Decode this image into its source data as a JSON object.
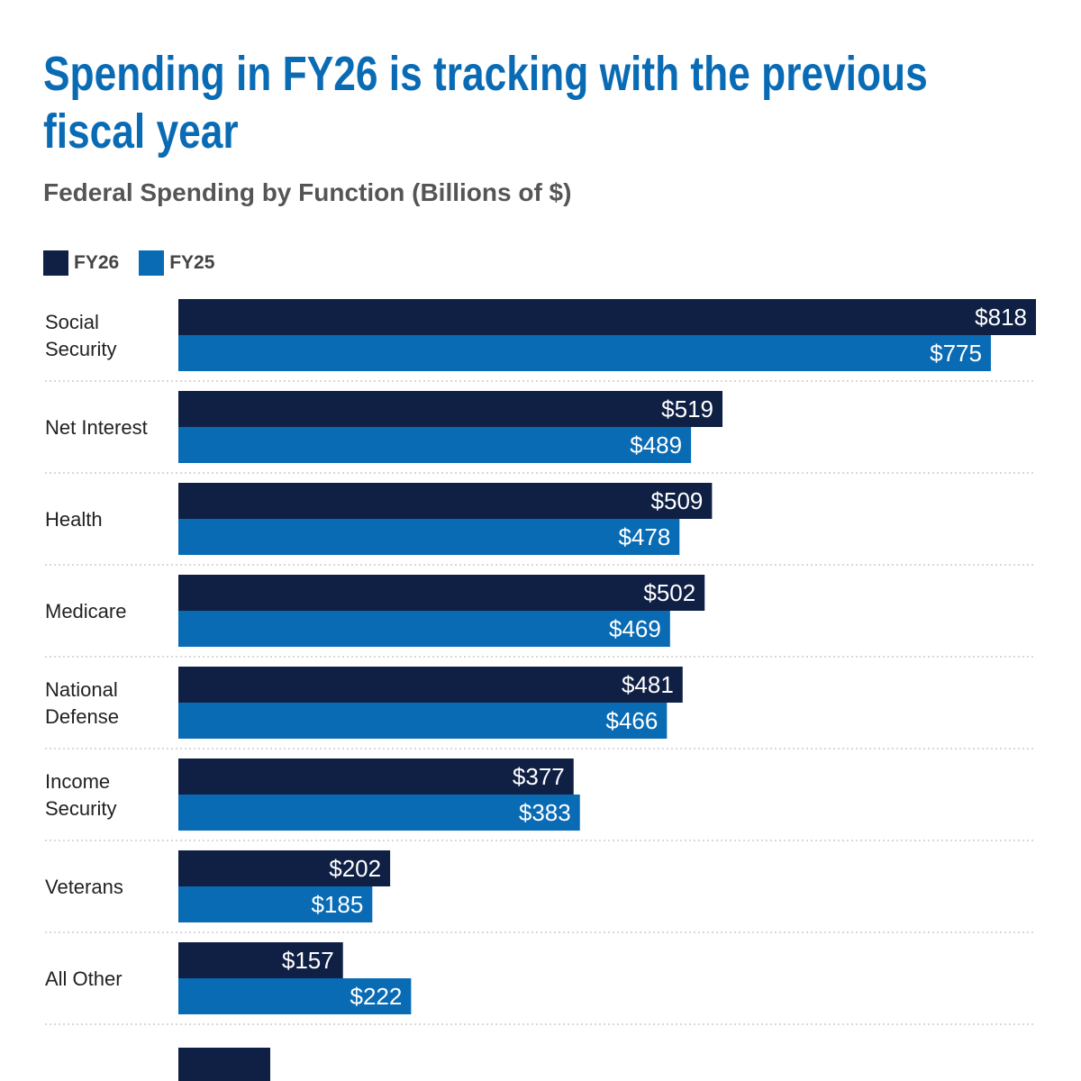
{
  "chart_data": {
    "type": "bar",
    "orientation": "horizontal",
    "title": "Spending in FY26 is tracking with the previous fiscal year",
    "subtitle": "Federal Spending by Function (Billions of $)",
    "categories": [
      [
        "Social",
        "Security"
      ],
      [
        "Net Interest"
      ],
      [
        "Health"
      ],
      [
        "Medicare"
      ],
      [
        "National",
        "Defense"
      ],
      [
        "Income",
        "Security"
      ],
      [
        "Veterans"
      ],
      [
        "All Other"
      ]
    ],
    "series": [
      {
        "name": "FY26",
        "color": "#0f2044",
        "values": [
          818,
          519,
          509,
          502,
          481,
          377,
          202,
          157
        ],
        "labels": [
          "$818",
          "$519",
          "$509",
          "$502",
          "$481",
          "$377",
          "$202",
          "$157"
        ]
      },
      {
        "name": "FY25",
        "color": "#0a6bb5",
        "values": [
          775,
          489,
          478,
          469,
          466,
          383,
          185,
          222
        ],
        "labels": [
          "$775",
          "$489",
          "$478",
          "$469",
          "$466",
          "$383",
          "$185",
          "$222"
        ]
      }
    ],
    "xlim": [
      0,
      818
    ],
    "legend": "top-left",
    "grid": false
  },
  "colors": {
    "title": "#0a6bb5",
    "fy26": "#0f2044",
    "fy25": "#0a6bb5",
    "divider": "#cccccc"
  }
}
